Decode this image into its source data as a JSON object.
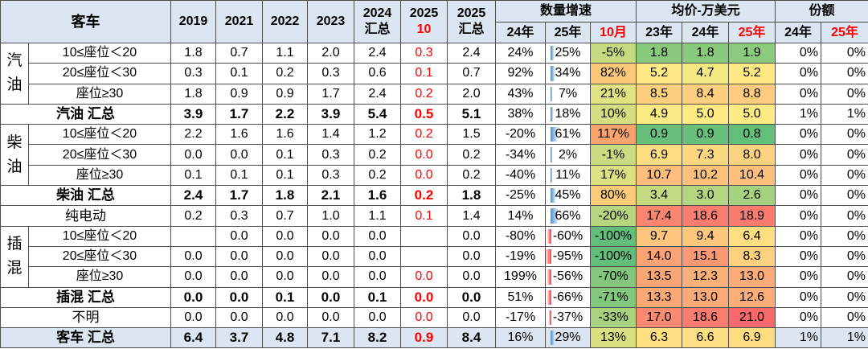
{
  "chart_data": {
    "type": "table",
    "header": {
      "corner": "客车",
      "year_cols": [
        "2019",
        "2021",
        "2022",
        "2023"
      ],
      "total_2024": {
        "top": "2024",
        "bottom": "汇总"
      },
      "month_2025": {
        "top": "2025",
        "bottom": "10"
      },
      "total_2025": {
        "top": "2025",
        "bottom": "汇总"
      },
      "growth": {
        "title": "数量增速",
        "cols": [
          "24年",
          "25年",
          "10月"
        ]
      },
      "price": {
        "title": "均价-万美元",
        "cols": [
          "23年",
          "24年",
          "25年"
        ]
      },
      "share": {
        "title": "份额",
        "cols": [
          "24年",
          "25年"
        ]
      }
    },
    "rows": [
      {
        "group": "汽油",
        "label": "10≤座位＜20",
        "counts": [
          "1.8",
          "0.7",
          "1.1",
          "2.0",
          "2.4",
          "0.3",
          "2.4"
        ],
        "growth": [
          "24%",
          "25%",
          "-5%"
        ],
        "price": [
          "1.8",
          "1.8",
          "1.9"
        ],
        "share": [
          "0%",
          "0%"
        ]
      },
      {
        "group": "汽油",
        "label": "20≤座位＜30",
        "counts": [
          "0.3",
          "0.1",
          "0.2",
          "0.3",
          "0.6",
          "0.1",
          "0.7"
        ],
        "growth": [
          "92%",
          "34%",
          "82%"
        ],
        "price": [
          "5.2",
          "4.7",
          "5.2"
        ],
        "share": [
          "0%",
          "0%"
        ]
      },
      {
        "group": "汽油",
        "label": "座位≥30",
        "counts": [
          "1.8",
          "0.9",
          "0.9",
          "1.7",
          "2.4",
          "0.2",
          "2.0"
        ],
        "growth": [
          "43%",
          "7%",
          "21%"
        ],
        "price": [
          "8.5",
          "8.4",
          "8.8"
        ],
        "share": [
          "0%",
          "0%"
        ]
      },
      {
        "label": "汽油 汇总",
        "counts": [
          "3.9",
          "1.7",
          "2.2",
          "3.9",
          "5.4",
          "0.5",
          "5.1"
        ],
        "growth": [
          "38%",
          "18%",
          "10%"
        ],
        "price": [
          "4.9",
          "5.0",
          "5.0"
        ],
        "share": [
          "1%",
          "1%"
        ]
      },
      {
        "group": "柴油",
        "label": "10≤座位＜20",
        "counts": [
          "2.2",
          "1.6",
          "1.6",
          "1.4",
          "1.2",
          "0.2",
          "1.5"
        ],
        "growth": [
          "-20%",
          "61%",
          "117%"
        ],
        "price": [
          "0.9",
          "0.9",
          "0.8"
        ],
        "share": [
          "0%",
          "0%"
        ]
      },
      {
        "group": "柴油",
        "label": "20≤座位＜30",
        "counts": [
          "0.0",
          "0.0",
          "0.1",
          "0.3",
          "0.2",
          "0.0",
          "0.2"
        ],
        "growth": [
          "-34%",
          "2%",
          "-1%"
        ],
        "price": [
          "6.9",
          "7.3",
          "8.0"
        ],
        "share": [
          "0%",
          "0%"
        ]
      },
      {
        "group": "柴油",
        "label": "座位≥30",
        "counts": [
          "0.1",
          "0.1",
          "0.1",
          "0.3",
          "0.2",
          "0.0",
          "0.2"
        ],
        "growth": [
          "-40%",
          "11%",
          "17%"
        ],
        "price": [
          "10.7",
          "10.2",
          "10.4"
        ],
        "share": [
          "0%",
          "0%"
        ]
      },
      {
        "label": "柴油 汇总",
        "counts": [
          "2.4",
          "1.7",
          "1.8",
          "2.1",
          "1.6",
          "0.2",
          "1.8"
        ],
        "growth": [
          "-25%",
          "45%",
          "80%"
        ],
        "price": [
          "3.4",
          "3.0",
          "2.6"
        ],
        "share": [
          "0%",
          "0%"
        ]
      },
      {
        "label": "纯电动",
        "counts": [
          "0.2",
          "0.3",
          "0.7",
          "1.0",
          "1.1",
          "0.1",
          "1.4"
        ],
        "growth": [
          "14%",
          "66%",
          "-20%"
        ],
        "price": [
          "17.4",
          "18.6",
          "18.9"
        ],
        "share": [
          "0%",
          "0%"
        ]
      },
      {
        "group": "插混",
        "label": "10≤座位＜20",
        "counts": [
          "",
          "0.0",
          "0.0",
          "0.0",
          "0.0",
          "",
          "0.0"
        ],
        "growth": [
          "-80%",
          "-60%",
          "-100%"
        ],
        "price": [
          "9.7",
          "9.4",
          "6.4"
        ],
        "share": [
          "0%",
          "0%"
        ]
      },
      {
        "group": "插混",
        "label": "20≤座位＜30",
        "counts": [
          "0.0",
          "0.0",
          "0.0",
          "0.0",
          "0.0",
          "",
          "0.0"
        ],
        "growth": [
          "-19%",
          "-95%",
          "-100%"
        ],
        "price": [
          "14.0",
          "15.1",
          "8.3"
        ],
        "share": [
          "0%",
          "0%"
        ]
      },
      {
        "group": "插混",
        "label": "座位≥30",
        "counts": [
          "0.0",
          "0.0",
          "0.0",
          "0.0",
          "0.0",
          "0.0",
          "0.0"
        ],
        "growth": [
          "199%",
          "-56%",
          "-70%"
        ],
        "price": [
          "13.5",
          "12.3",
          "13.0"
        ],
        "share": [
          "0%",
          "0%"
        ]
      },
      {
        "label": "插混 汇总",
        "counts": [
          "0.0",
          "0.0",
          "0.1",
          "0.0",
          "0.1",
          "0.0",
          "0.0"
        ],
        "growth": [
          "51%",
          "-66%",
          "-71%"
        ],
        "price": [
          "13.3",
          "13.0",
          "12.6"
        ],
        "share": [
          "0%",
          "0%"
        ]
      },
      {
        "label": "不明",
        "counts": [
          "0.0",
          "0.0",
          "0.0",
          "0.0",
          "0.0",
          "0.0",
          "0.0"
        ],
        "growth": [
          "-17%",
          "-37%",
          "-33%"
        ],
        "price": [
          "17.0",
          "18.6",
          "21.0"
        ],
        "share": [
          "0%",
          "0%"
        ]
      },
      {
        "label": "客车 汇总",
        "counts": [
          "6.4",
          "3.7",
          "4.8",
          "7.1",
          "8.2",
          "0.9",
          "8.4"
        ],
        "growth": [
          "16%",
          "29%",
          "13%"
        ],
        "price": [
          "6.3",
          "6.6",
          "6.9"
        ],
        "share": [
          "1%",
          "1%"
        ]
      }
    ]
  },
  "colors": {
    "header_bg": "#DCE6F2",
    "highlight_text": "#FF0000",
    "scale_low": "#63BE7B",
    "scale_mid": "#FFEB84",
    "scale_high": "#F8696B",
    "growth_high": "#F9A46E",
    "bar_positive": "#5B9BD5",
    "bar_negative": "#FF5050"
  }
}
